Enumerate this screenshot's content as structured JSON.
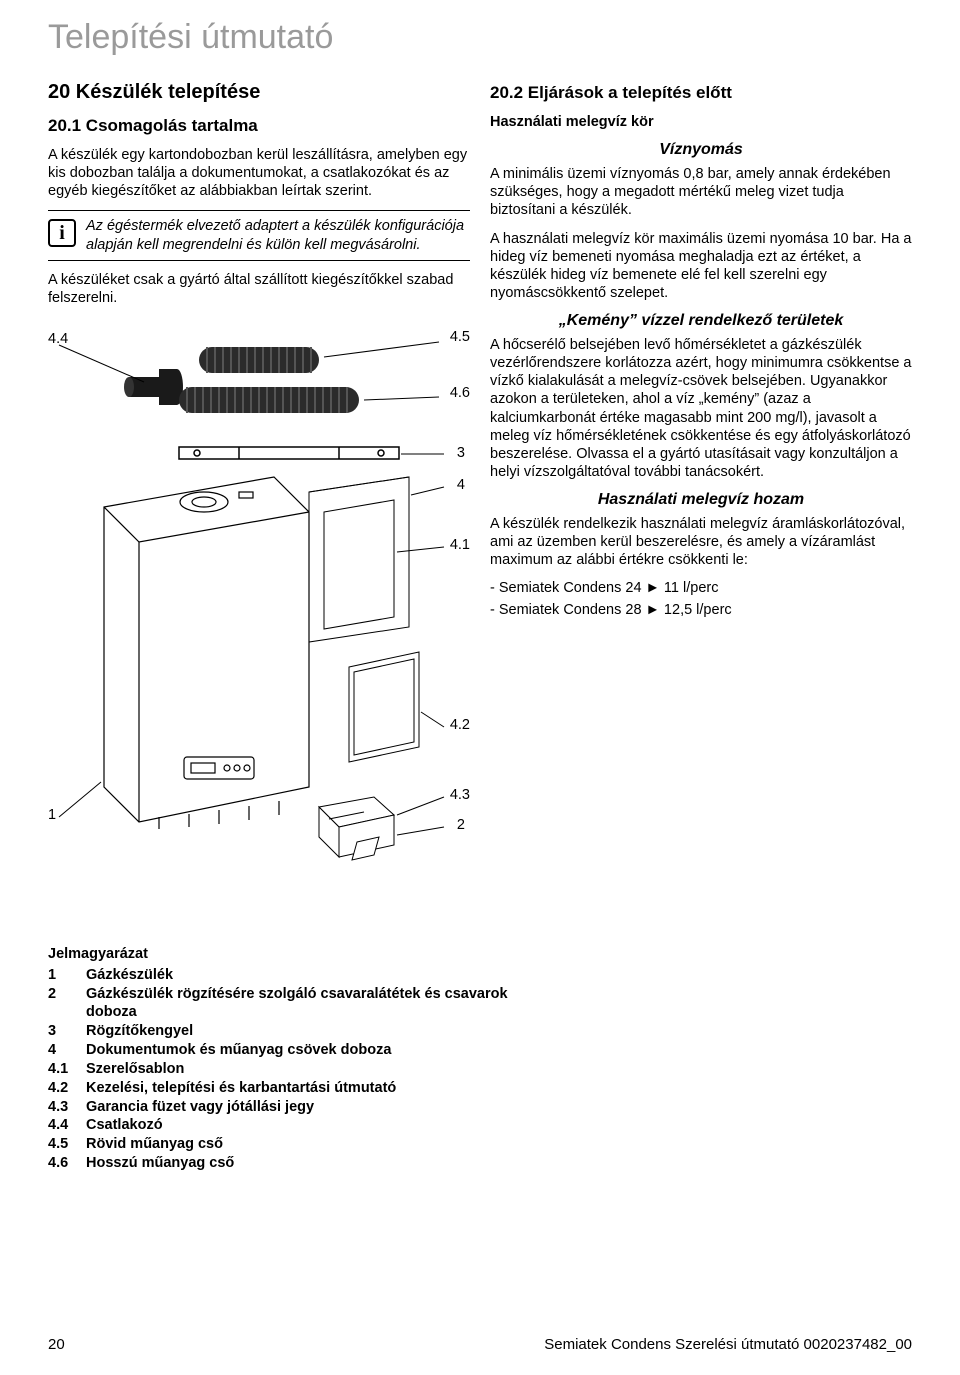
{
  "doc_title": "Telepítési útmutató",
  "left": {
    "h2": "20  Készülék telepítése",
    "h3": "20.1   Csomagolás tartalma",
    "p1": "A készülék egy kartondobozban kerül leszállításra, amelyben egy kis dobozban találja a dokumentumokat, a csatlakozókat és az egyéb kiegészítőket az alábbiakban leírtak szerint.",
    "info_glyph": "i",
    "info": "Az égéstermék elvezető adaptert a készülék konfigurációja alapján kell megrendelni és külön kell megvásárolni.",
    "p2": "A készüléket csak a gyártó által szállított kiegészítőkkel szabad felszerelni.",
    "fig_labels": {
      "l44": "4.4",
      "l45": "4.5",
      "l46": "4.6",
      "l3": "3",
      "l4": "4",
      "l41": "4.1",
      "l42": "4.2",
      "l43": "4.3",
      "l2": "2",
      "l1": "1"
    }
  },
  "right": {
    "h3": "20.2   Eljárások a telepítés előtt",
    "sub_bold": "Használati melegvíz kör",
    "h_press": "Víznyomás",
    "p_press1": "A minimális üzemi víznyomás 0,8 bar, amely annak érdekében szükséges, hogy a megadott mértékű meleg vizet tudja biztosítani a készülék.",
    "p_press2": "A használati melegvíz kör maximális üzemi nyomása 10 bar. Ha a hideg víz bemeneti nyomása meghaladja ezt az értéket, a készülék hideg víz bemenete elé fel kell szerelni egy nyomáscsökkentő szelepet.",
    "h_hard": "„Kemény” vízzel rendelkező területek",
    "p_hard": "A hőcserélő belsejében levő hőmérsékletet a gázkészülék vezérlőrendszere korlátozza azért, hogy minimumra csökkentse a vízkő kialakulását a melegvíz-csövek belsejében. Ugyanakkor azokon a területeken, ahol a víz „kemény” (azaz a kalciumkarbonát értéke magasabb mint 200 mg/l), javasolt a meleg víz hőmérsékletének csökkentése és egy átfolyáskorlátozó beszerelése. Olvassa el a gyártó utasításait vagy konzultáljon a helyi vízszolgáltatóval további tanácsokért.",
    "h_flow": "Használati melegvíz hozam",
    "p_flow": "A készülék rendelkezik használati melegvíz áramláskorlátozóval, ami az üzemben kerül beszerelésre, és amely a vízáramlást maximum az alábbi értékre csökkenti le:",
    "flow_1": "- Semiatek Condens 24   ►  11 l/perc",
    "flow_2": "- Semiatek Condens 28   ►  12,5 l/perc"
  },
  "legend": {
    "title": "Jelmagyarázat",
    "items": [
      {
        "k": "1",
        "v": "Gázkészülék"
      },
      {
        "k": "2",
        "v": "Gázkészülék rögzítésére szolgáló csavaralátétek és csavarok doboza"
      },
      {
        "k": "3",
        "v": "Rögzítőkengyel"
      },
      {
        "k": "4",
        "v": "Dokumentumok és műanyag csövek doboza"
      },
      {
        "k": "4.1",
        "v": "Szerelősablon"
      },
      {
        "k": "4.2",
        "v": "Kezelési, telepítési és karbantartási útmutató"
      },
      {
        "k": "4.3",
        "v": "Garancia füzet vagy jótállási jegy"
      },
      {
        "k": "4.4",
        "v": "Csatlakozó"
      },
      {
        "k": "4.5",
        "v": "Rövid műanyag cső"
      },
      {
        "k": "4.6",
        "v": "Hosszú műanyag cső"
      }
    ]
  },
  "footer": {
    "page": "20",
    "right": "Semiatek Condens Szerelési útmutató  0020237482_00"
  },
  "svg_colors": {
    "stroke": "#000000",
    "fill_light": "#ffffff",
    "fill_dark": "#2b2b2b",
    "fill_mid": "#808080"
  }
}
